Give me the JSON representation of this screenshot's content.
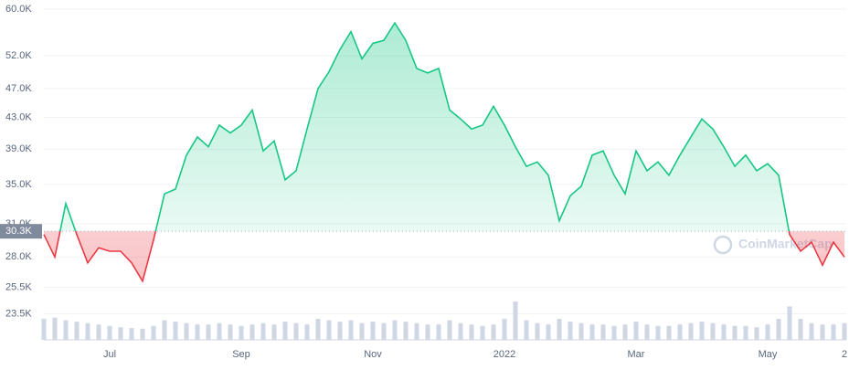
{
  "chart_data": {
    "type": "line",
    "log_scale": true,
    "grid": true,
    "watermark": "CoinMarketCap",
    "reference": {
      "value": 30.3,
      "label": "30.3K"
    },
    "color_above": "#16c784",
    "color_below": "#ea3943",
    "volume_color": "#cfd6e4",
    "ylim": [
      21.7,
      60
    ],
    "yticks": [
      {
        "value": 23.5,
        "label": "23.5K"
      },
      {
        "value": 25.5,
        "label": "25.5K"
      },
      {
        "value": 28,
        "label": "28.0K"
      },
      {
        "value": 31,
        "label": "31.0K"
      },
      {
        "value": 35,
        "label": "35.0K"
      },
      {
        "value": 39,
        "label": "39.0K"
      },
      {
        "value": 43,
        "label": "43.0K"
      },
      {
        "value": 47,
        "label": "47.0K"
      },
      {
        "value": 52,
        "label": "52.0K"
      },
      {
        "value": 60,
        "label": "60.0K"
      }
    ],
    "categories": [
      null,
      null,
      null,
      null,
      null,
      null,
      "Jul",
      null,
      null,
      null,
      null,
      null,
      null,
      null,
      null,
      null,
      null,
      null,
      "Sep",
      null,
      null,
      null,
      null,
      null,
      null,
      null,
      null,
      null,
      null,
      null,
      "Nov",
      null,
      null,
      null,
      null,
      null,
      null,
      null,
      null,
      null,
      null,
      null,
      "2022",
      null,
      null,
      null,
      null,
      null,
      null,
      null,
      null,
      null,
      null,
      null,
      "Mar",
      null,
      null,
      null,
      null,
      null,
      null,
      null,
      null,
      null,
      null,
      null,
      "May",
      null,
      null,
      null,
      null,
      null,
      null,
      "2"
    ],
    "values": [
      30.0,
      28.0,
      33.0,
      30.0,
      27.5,
      28.8,
      28.5,
      28.5,
      27.5,
      26.0,
      29.5,
      34.0,
      34.5,
      38.3,
      40.5,
      39.3,
      42.0,
      41.0,
      42.0,
      44.0,
      38.8,
      40.0,
      35.5,
      36.5,
      41.5,
      47.0,
      49.5,
      53.0,
      56.0,
      51.5,
      54.0,
      54.5,
      57.5,
      54.5,
      50.0,
      49.3,
      50.0,
      44.0,
      42.8,
      41.5,
      42.0,
      44.5,
      42.0,
      39.3,
      37.0,
      37.5,
      36.0,
      31.3,
      33.8,
      34.8,
      38.3,
      38.8,
      36.0,
      34.0,
      38.8,
      36.5,
      37.5,
      36.0,
      38.3,
      40.5,
      42.8,
      41.5,
      39.3,
      37.0,
      38.3,
      36.5,
      37.3,
      36.0,
      30.0,
      28.5,
      29.3,
      27.3,
      29.3,
      28.0
    ],
    "volumes": [
      30,
      32,
      28,
      26,
      24,
      22,
      20,
      18,
      17,
      16,
      20,
      28,
      26,
      24,
      22,
      22,
      24,
      22,
      20,
      22,
      24,
      22,
      26,
      24,
      22,
      30,
      28,
      26,
      28,
      24,
      26,
      24,
      28,
      26,
      24,
      22,
      22,
      28,
      24,
      22,
      20,
      22,
      30,
      55,
      28,
      24,
      22,
      30,
      26,
      24,
      22,
      22,
      20,
      22,
      26,
      22,
      20,
      20,
      22,
      24,
      26,
      24,
      22,
      20,
      20,
      18,
      22,
      30,
      48,
      30,
      24,
      22,
      22,
      24
    ]
  }
}
